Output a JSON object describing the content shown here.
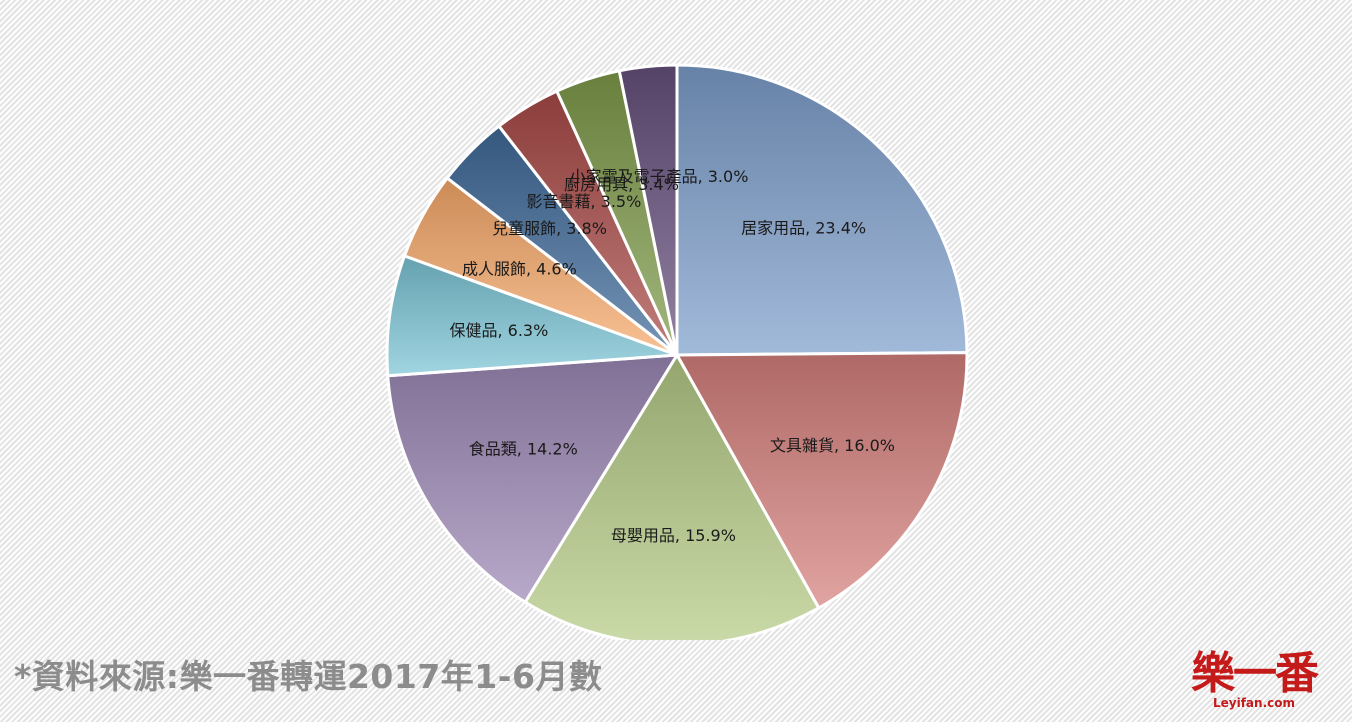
{
  "chart_data": {
    "type": "pie",
    "start_angle_deg": 0,
    "direction": "clockwise",
    "slices": [
      {
        "label": "居家用品",
        "value": 23.4,
        "display": "居家用品, 23.4%",
        "color": "#7e9fcc"
      },
      {
        "label": "文具雜貨",
        "value": 16.0,
        "display": "文具雜貨, 16.0%",
        "color": "#d5807c"
      },
      {
        "label": "母嬰用品",
        "value": 15.9,
        "display": "母嬰用品, 15.9%",
        "color": "#b5cb86"
      },
      {
        "label": "食品類",
        "value": 14.2,
        "display": "食品類, 14.2%",
        "color": "#9c88b6"
      },
      {
        "label": "保健品",
        "value": 6.3,
        "display": "保健品, 6.3%",
        "color": "#7bc4d6"
      },
      {
        "label": "成人服飾",
        "value": 4.6,
        "display": "成人服飾, 4.6%",
        "color": "#f7a96a"
      },
      {
        "label": "兒童服飾",
        "value": 3.8,
        "display": "兒童服飾, 3.8%",
        "color": "#3f6a9a"
      },
      {
        "label": "影音書藉",
        "value": 3.5,
        "display": "影音書藉, 3.5%",
        "color": "#a94a47"
      },
      {
        "label": "廚房用具",
        "value": 3.4,
        "display": "廚房用具, 3.4%",
        "color": "#7f9b4a"
      },
      {
        "label": "小家電及電子產品",
        "value": 3.0,
        "display": "小家電及電子產品, 3.0%",
        "color": "#66507e"
      }
    ]
  },
  "footer": {
    "source_note": "*資料來源:樂一番轉運2017年1-6月數"
  },
  "logo": {
    "mark": "樂一番",
    "url": "Leyifan.com"
  }
}
